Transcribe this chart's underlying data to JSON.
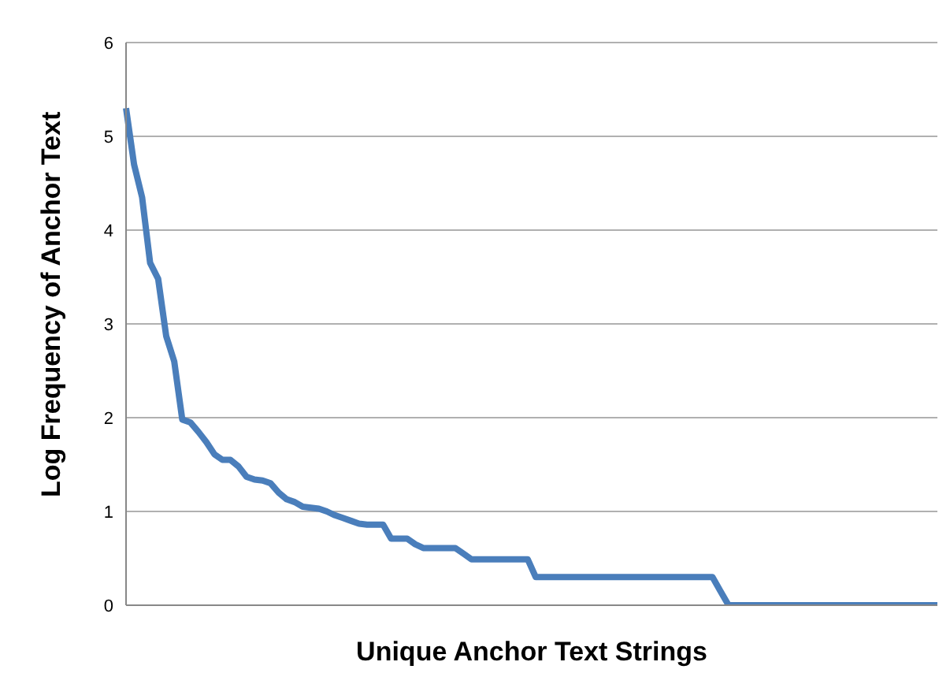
{
  "chart_data": {
    "type": "line",
    "xlabel": "Unique Anchor Text Strings",
    "ylabel": "Log Frequency of Anchor Text",
    "categories": [
      null,
      null,
      null,
      null,
      null,
      null,
      null,
      null,
      null,
      null,
      null,
      null,
      null,
      null,
      null,
      null,
      null,
      null,
      null,
      null,
      null,
      null,
      null,
      null,
      null,
      null,
      null,
      null,
      null,
      null,
      null,
      null,
      null,
      null,
      null,
      null,
      null,
      null,
      null,
      null,
      null,
      null,
      null,
      null,
      null,
      null,
      null,
      null,
      null,
      null,
      null,
      null,
      null,
      null,
      null,
      null,
      null,
      null,
      null,
      null,
      null,
      null,
      null,
      null,
      null,
      null,
      null,
      null,
      null,
      null,
      null,
      null,
      null,
      null,
      null,
      null,
      null,
      null,
      null,
      null,
      null,
      null,
      null,
      null,
      null,
      null,
      null,
      null,
      null,
      null,
      null,
      null,
      null,
      null,
      null,
      null,
      null,
      null,
      null,
      null,
      null,
      null
    ],
    "series": [
      {
        "color": "#4a7ebb",
        "values": [
          5.3,
          4.7,
          4.35,
          3.65,
          3.48,
          2.87,
          2.6,
          1.98,
          1.95,
          1.85,
          1.74,
          1.61,
          1.55,
          1.55,
          1.48,
          1.37,
          1.34,
          1.33,
          1.3,
          1.2,
          1.13,
          1.1,
          1.05,
          1.04,
          1.03,
          1.0,
          0.96,
          0.93,
          0.9,
          0.87,
          0.86,
          0.86,
          0.86,
          0.71,
          0.71,
          0.71,
          0.65,
          0.61,
          0.61,
          0.61,
          0.61,
          0.61,
          0.55,
          0.49,
          0.49,
          0.49,
          0.49,
          0.49,
          0.49,
          0.49,
          0.49,
          0.3,
          0.3,
          0.3,
          0.3,
          0.3,
          0.3,
          0.3,
          0.3,
          0.3,
          0.3,
          0.3,
          0.3,
          0.3,
          0.3,
          0.3,
          0.3,
          0.3,
          0.3,
          0.3,
          0.3,
          0.3,
          0.3,
          0.3,
          0.15,
          0,
          0,
          0,
          0,
          0,
          0,
          0,
          0,
          0,
          0,
          0,
          0,
          0,
          0,
          0,
          0,
          0,
          0,
          0,
          0,
          0,
          0,
          0,
          0,
          0,
          0,
          0
        ]
      }
    ],
    "ylim": [
      0,
      6
    ],
    "yticks": [
      0,
      1,
      2,
      3,
      4,
      5,
      6
    ],
    "grid": "y",
    "tick_labels": "y",
    "marker": "none",
    "line_style": "solid",
    "legend": false
  }
}
